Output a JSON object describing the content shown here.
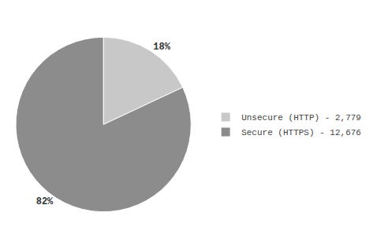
{
  "chart_data": {
    "type": "pie",
    "categories": [
      "Unsecure (HTTP) - 2,779",
      "Secure (HTTPS) - 12,676"
    ],
    "values": [
      18,
      82
    ],
    "value_labels": [
      "18%",
      "82%"
    ],
    "data_labels": true,
    "colors": [
      "#c8c8c8",
      "#8c8c8c"
    ],
    "legend": "right"
  }
}
